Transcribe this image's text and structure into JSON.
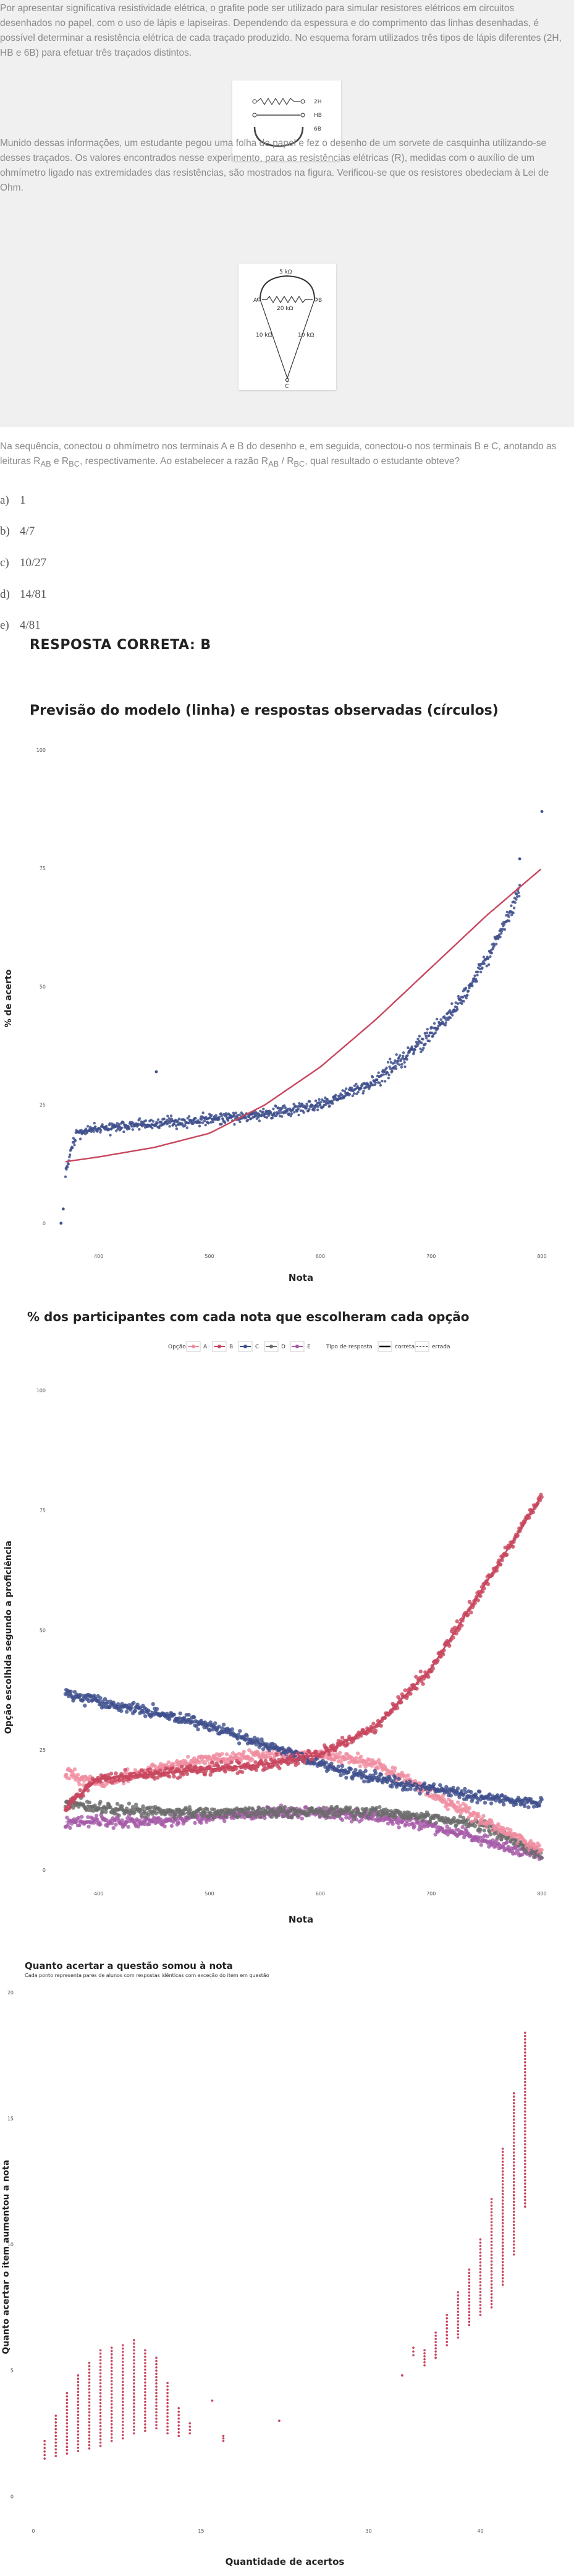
{
  "question": {
    "paragraph1": "Por apresentar significativa resistividade elétrica, o grafite pode ser utilizado para simular resistores elétricos em circuitos desenhados no papel, com o uso de lápis e lapiseiras. Dependendo da espessura e do comprimento das linhas desenhadas, é possível determinar a resistência elétrica de cada traçado produzido. No esquema foram utilizados três tipos de lápis diferentes (2H, HB e 6B) para efetuar três traçados distintos.",
    "figure1_labels": [
      "2H",
      "HB",
      "6B"
    ],
    "paragraph2": "Munido dessas informações, um estudante pegou uma folha de papel e fez o desenho de um sorvete de casquinha utilizando-se desses traçados. Os valores encontrados nesse experimento, para as resistências elétricas (R), medidas com o auxílio de um ohmímetro ligado nas extremidades das resistências, são mostrados na figura. Verificou-se que os resistores obedeciam à Lei de Ohm.",
    "figure2_labels": {
      "top": "5 kΩ",
      "middle": "20 kΩ",
      "left": "10 kΩ",
      "right": "10 kΩ",
      "a": "A",
      "b": "B",
      "c": "C"
    },
    "stem_part1": "Na sequência, conectou o ohmímetro nos terminais A e B do desenho e, em seguida, conectou-o nos terminais B e C, anotando as leituras R",
    "stem_sub1": "AB",
    "stem_part2": " e R",
    "stem_sub2": "BC",
    "stem_part3": ", respectivamente. Ao estabelecer a razão R",
    "stem_sub3": "AB",
    "stem_part4": " / R",
    "stem_sub4": "BC",
    "stem_part5": ", qual resultado o estudante obteve?",
    "alternatives": [
      {
        "letter": "a)",
        "text": "1"
      },
      {
        "letter": "b)",
        "text": "4/7"
      },
      {
        "letter": "c)",
        "text": "10/27"
      },
      {
        "letter": "d)",
        "text": "14/81"
      },
      {
        "letter": "e)",
        "text": "4/81"
      }
    ],
    "answer": "RESPOSTA CORRETA: B"
  },
  "chart_data": [
    {
      "type": "scatter",
      "title": "Previsão do modelo (linha) e respostas observadas (círculos)",
      "xlabel": "Nota",
      "ylabel": "% de acerto",
      "xticks": [
        400,
        500,
        600,
        700,
        800
      ],
      "yticks": [
        0,
        25,
        50,
        75,
        100
      ],
      "xlim": [
        360,
        805
      ],
      "ylim": [
        -5,
        100
      ],
      "colors": {
        "points": "#3e4f8c",
        "line": "#c8465e"
      },
      "series": [
        {
          "kind": "model-curve",
          "x": [
            370,
            400,
            450,
            500,
            550,
            600,
            650,
            700,
            750,
            800
          ],
          "y": [
            13,
            14,
            16,
            19,
            25,
            33,
            43,
            54,
            65,
            75
          ]
        },
        {
          "kind": "observed-trend",
          "x": [
            370,
            380,
            400,
            450,
            500,
            550,
            600,
            650,
            680,
            700,
            730,
            760,
            780
          ],
          "y": [
            11,
            19,
            20,
            21,
            22,
            23,
            25,
            30,
            36,
            40,
            48,
            60,
            70
          ]
        },
        {
          "kind": "outliers",
          "x": [
            366,
            368,
            452,
            780,
            800
          ],
          "y": [
            0,
            3,
            32,
            77,
            87
          ]
        }
      ]
    },
    {
      "type": "scatter",
      "title": "% dos participantes com cada nota que escolheram cada opção",
      "legend_title_option": "Opção",
      "legend_options": [
        "A",
        "B",
        "C",
        "D",
        "E"
      ],
      "legend_title_type": "Tipo de resposta",
      "legend_types": [
        "correta",
        "errada"
      ],
      "xlabel": "Nota",
      "ylabel": "Opção escolhida segundo a proficiência",
      "xticks": [
        400,
        500,
        600,
        700,
        800
      ],
      "yticks": [
        0,
        25,
        50,
        75,
        100
      ],
      "xlim": [
        360,
        805
      ],
      "ylim": [
        -3,
        100
      ],
      "colors": {
        "A": "#f08ca0",
        "B": "#c8465e",
        "C": "#3e4f8c",
        "D": "#6b6b6b",
        "E": "#a55aa8"
      },
      "series": [
        {
          "name": "C",
          "x": [
            370,
            400,
            450,
            500,
            550,
            600,
            650,
            700,
            750,
            800
          ],
          "y": [
            37,
            35,
            33,
            30,
            26,
            22,
            19,
            17,
            15,
            14
          ]
        },
        {
          "name": "B",
          "x": [
            370,
            400,
            450,
            500,
            550,
            600,
            650,
            700,
            750,
            800
          ],
          "y": [
            13,
            19,
            20,
            21,
            22,
            24,
            30,
            42,
            60,
            78
          ]
        },
        {
          "name": "A",
          "x": [
            370,
            400,
            450,
            500,
            550,
            600,
            650,
            700,
            750,
            800
          ],
          "y": [
            20,
            18,
            21,
            23,
            24,
            24,
            22,
            16,
            10,
            4
          ]
        },
        {
          "name": "D",
          "x": [
            370,
            400,
            450,
            500,
            550,
            600,
            650,
            700,
            750,
            800
          ],
          "y": [
            14,
            13,
            12,
            12,
            12,
            12,
            12,
            11,
            9,
            3
          ]
        },
        {
          "name": "E",
          "x": [
            370,
            400,
            450,
            500,
            550,
            600,
            650,
            700,
            750,
            800
          ],
          "y": [
            10,
            10,
            10,
            11,
            12,
            12,
            11,
            9,
            6,
            3
          ]
        }
      ]
    },
    {
      "type": "scatter",
      "title": "Quanto acertar a questão somou à nota",
      "subtitle": "Cada ponto representa pares de alunos com respostas idênticas com exceção do item em questão",
      "xlabel": "Quantidade de acertos",
      "ylabel": "Quanto acertar o item aumentou a nota",
      "xticks": [
        0,
        15,
        30,
        40
      ],
      "yticks": [
        0,
        5,
        10,
        15,
        20
      ],
      "xlim": [
        -1,
        46
      ],
      "ylim": [
        -1,
        20
      ],
      "colors": {
        "points": "#c8465e"
      },
      "columns": [
        {
          "x": 1,
          "ymin": 1.5,
          "ymax": 2.2
        },
        {
          "x": 2,
          "ymin": 1.6,
          "ymax": 3.2
        },
        {
          "x": 3,
          "ymin": 1.7,
          "ymax": 4.1
        },
        {
          "x": 4,
          "ymin": 1.8,
          "ymax": 4.8
        },
        {
          "x": 5,
          "ymin": 1.9,
          "ymax": 5.3
        },
        {
          "x": 6,
          "ymin": 2.0,
          "ymax": 5.8
        },
        {
          "x": 7,
          "ymin": 2.2,
          "ymax": 5.9
        },
        {
          "x": 8,
          "ymin": 2.3,
          "ymax": 6.0
        },
        {
          "x": 9,
          "ymin": 2.5,
          "ymax": 6.2
        },
        {
          "x": 10,
          "ymin": 2.6,
          "ymax": 5.8
        },
        {
          "x": 11,
          "ymin": 2.7,
          "ymax": 5.5
        },
        {
          "x": 12,
          "ymin": 2.5,
          "ymax": 4.5
        },
        {
          "x": 13,
          "ymin": 2.4,
          "ymax": 3.5
        },
        {
          "x": 14,
          "ymin": 2.5,
          "ymax": 2.9
        },
        {
          "x": 16,
          "ymin": 3.8,
          "ymax": 3.8
        },
        {
          "x": 17,
          "ymin": 2.2,
          "ymax": 2.4
        },
        {
          "x": 22,
          "ymin": 3.0,
          "ymax": 3.0
        },
        {
          "x": 33,
          "ymin": 4.8,
          "ymax": 4.8
        },
        {
          "x": 34,
          "ymin": 5.6,
          "ymax": 5.9
        },
        {
          "x": 35,
          "ymin": 5.2,
          "ymax": 5.8
        },
        {
          "x": 36,
          "ymin": 5.5,
          "ymax": 6.5
        },
        {
          "x": 37,
          "ymin": 6.0,
          "ymax": 7.2
        },
        {
          "x": 38,
          "ymin": 6.3,
          "ymax": 8.1
        },
        {
          "x": 39,
          "ymin": 6.8,
          "ymax": 9.0
        },
        {
          "x": 40,
          "ymin": 7.2,
          "ymax": 10.2
        },
        {
          "x": 41,
          "ymin": 7.5,
          "ymax": 11.8
        },
        {
          "x": 42,
          "ymin": 8.4,
          "ymax": 13.8
        },
        {
          "x": 43,
          "ymin": 9.6,
          "ymax": 16.0
        },
        {
          "x": 44,
          "ymin": 11.5,
          "ymax": 18.4
        }
      ]
    }
  ]
}
